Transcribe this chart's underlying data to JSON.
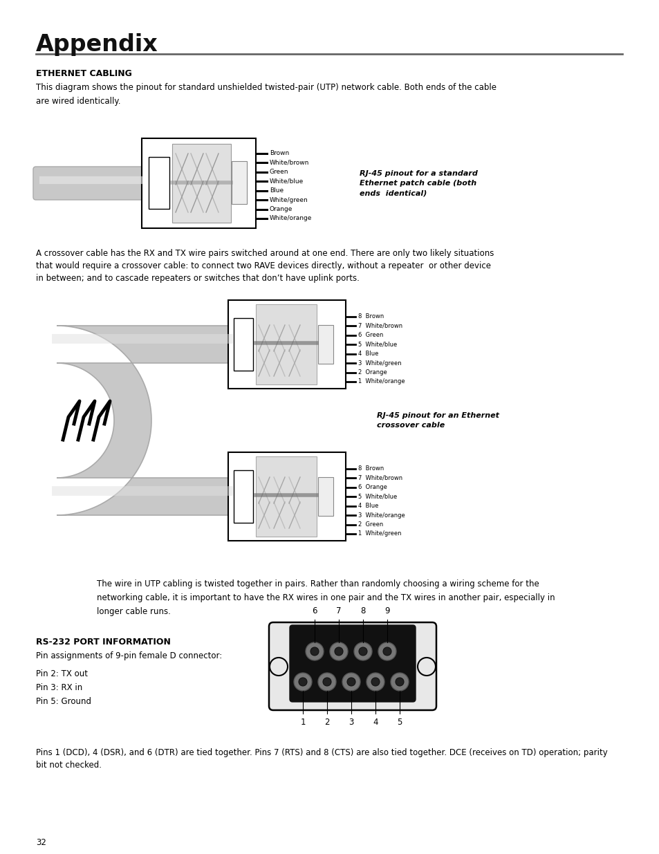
{
  "page_title": "Appendix",
  "section1_title": "ETHERNET CABLING",
  "section1_body1": "This diagram shows the pinout for standard unshielded twisted-pair (UTP) network cable. Both ends of the cable",
  "section1_body2": "are wired identically.",
  "patch_labels": [
    "White/orange",
    "Orange",
    "White/green",
    "Blue",
    "White/blue",
    "Green",
    "White/brown",
    "Brown"
  ],
  "patch_caption": "RJ-45 pinout for a standard\nEthernet patch cable (both\nends  identical)",
  "crossover_body1": "A crossover cable has the RX and TX wire pairs switched around at one end. There are only two likely situations",
  "crossover_body2": "that would require a crossover cable: to connect two RAVE devices directly, without a repeater  or other device",
  "crossover_body3": "in between; and to cascade repeaters or switches that don’t have uplink ports.",
  "crossover_labels_top": [
    "1  White/orange",
    "2  Orange",
    "3  White/green",
    "4  Blue",
    "5  White/blue",
    "6  Green",
    "7  White/brown",
    "8  Brown"
  ],
  "crossover_labels_bottom": [
    "1  White/green",
    "2  Green",
    "3  White/orange",
    "4  Blue",
    "5  White/blue",
    "6  Orange",
    "7  White/brown",
    "8  Brown"
  ],
  "crossover_caption": "RJ-45 pinout for an Ethernet\ncrossover cable",
  "wire_body1": "The wire in UTP cabling is twisted together in pairs. Rather than randomly choosing a wiring scheme for the",
  "wire_body2": "networking cable, it is important to have the RX wires in one pair and the TX wires in another pair, especially in",
  "wire_body3": "longer cable runs.",
  "section2_title": "RS-232 PORT INFORMATION",
  "section2_body1": "Pin assignments of 9-pin female D connector:",
  "pin_info": [
    "Pin 2: TX out",
    "Pin 3: RX in",
    "Pin 5: Ground"
  ],
  "db9_top_labels": [
    "6",
    "7",
    "8",
    "9"
  ],
  "db9_bottom_labels": [
    "1",
    "2",
    "3",
    "4",
    "5"
  ],
  "section2_body2": "Pins 1 (DCD), 4 (DSR), and 6 (DTR) are tied together. Pins 7 (RTS) and 8 (CTS) are also tied together. DCE (receives on TD) operation; parity",
  "section2_body3": "bit not checked.",
  "page_number": "32",
  "bg_color": "#ffffff",
  "text_color": "#000000",
  "gray_cable": "#cccccc",
  "gray_cable_dark": "#aaaaaa",
  "gray_inner": "#dddddd",
  "line_color": "#666666"
}
